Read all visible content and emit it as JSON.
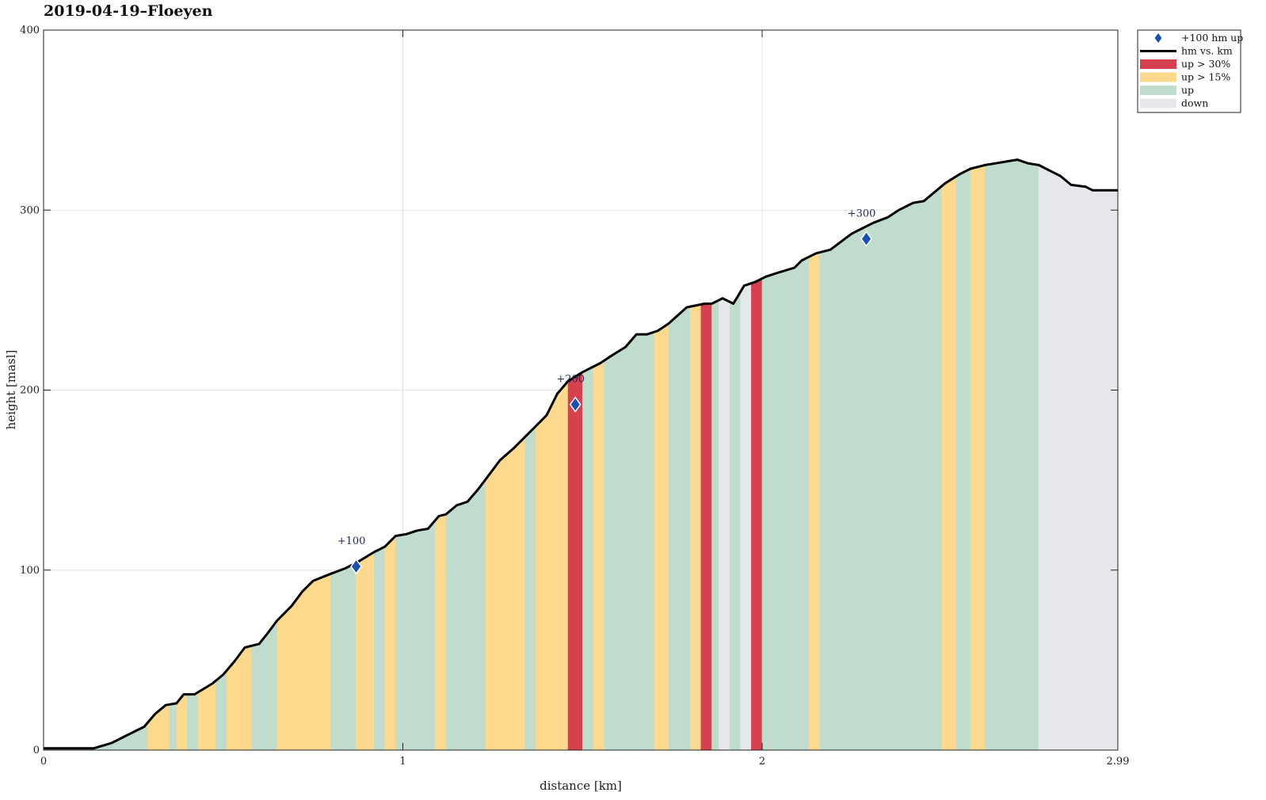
{
  "chart_data": {
    "type": "area",
    "title": "2019-04-19–Floeyen",
    "xlabel": "distance [km]",
    "ylabel": "height [masl]",
    "xlim": [
      0,
      2.99
    ],
    "ylim": [
      0,
      400
    ],
    "x_ticks": [
      {
        "value": 0,
        "label": "0"
      },
      {
        "value": 1,
        "label": "1"
      },
      {
        "value": 2,
        "label": "2"
      },
      {
        "value": 2.99,
        "label": "2.99"
      }
    ],
    "y_ticks": [
      {
        "value": 0,
        "label": "0"
      },
      {
        "value": 100,
        "label": "100"
      },
      {
        "value": 200,
        "label": "200"
      },
      {
        "value": 300,
        "label": "300"
      },
      {
        "value": 400,
        "label": "400"
      }
    ],
    "grid": true,
    "legend_position": "outside-top-right",
    "legend": [
      {
        "key": "marker",
        "label": "+100 hm up"
      },
      {
        "key": "line",
        "label": "hm vs. km"
      },
      {
        "key": "steep",
        "label": "up > 30%"
      },
      {
        "key": "medium",
        "label": "up > 15%"
      },
      {
        "key": "up",
        "label": "up"
      },
      {
        "key": "down",
        "label": "down"
      }
    ],
    "colors": {
      "steep": "#d7404f",
      "medium": "#fcd98c",
      "up": "#c0dccc",
      "down": "#e6e7eb",
      "line": "#000000",
      "marker": "#1750b0",
      "marker_label": "#1a2a5a",
      "grid": "#e3e3e3"
    },
    "profile": {
      "x": [
        0,
        0.03,
        0.06,
        0.09,
        0.14,
        0.19,
        0.24,
        0.28,
        0.31,
        0.34,
        0.37,
        0.39,
        0.42,
        0.42,
        0.47,
        0.5,
        0.53,
        0.56,
        0.6,
        0.62,
        0.65,
        0.69,
        0.72,
        0.75,
        0.8,
        0.84,
        0.87,
        0.92,
        0.95,
        0.98,
        1.01,
        1.04,
        1.07,
        1.1,
        1.12,
        1.15,
        1.18,
        1.21,
        1.24,
        1.27,
        1.31,
        1.34,
        1.37,
        1.4,
        1.43,
        1.46,
        1.5,
        1.55,
        1.58,
        1.62,
        1.65,
        1.68,
        1.71,
        1.74,
        1.79,
        1.84,
        1.86,
        1.89,
        1.92,
        1.95,
        1.98,
        2.01,
        2.04,
        2.09,
        2.11,
        2.15,
        2.19,
        2.23,
        2.25,
        2.28,
        2.31,
        2.35,
        2.38,
        2.42,
        2.45,
        2.48,
        2.51,
        2.55,
        2.58,
        2.62,
        2.65,
        2.68,
        2.71,
        2.74,
        2.77,
        2.8,
        2.83,
        2.86,
        2.9,
        2.92,
        2.95,
        2.99
      ],
      "y": [
        1,
        1,
        1,
        1,
        1,
        4,
        9,
        13,
        20,
        25,
        26,
        31,
        31,
        31,
        37,
        42,
        49,
        57,
        59,
        64,
        72,
        80,
        88,
        94,
        98,
        101,
        104,
        110,
        113,
        119,
        120,
        122,
        123,
        130,
        131,
        136,
        138,
        145,
        153,
        161,
        168,
        174,
        180,
        186,
        198,
        205,
        210,
        215,
        219,
        224,
        231,
        231,
        233,
        237,
        246,
        248,
        248,
        251,
        248,
        258,
        260,
        263,
        265,
        268,
        272,
        276,
        278,
        284,
        287,
        290,
        293,
        296,
        300,
        304,
        305,
        310,
        315,
        320,
        323,
        325,
        326,
        327,
        328,
        326,
        325,
        322,
        319,
        314,
        313,
        311,
        311,
        311
      ]
    },
    "segments": [
      {
        "x0": 0,
        "x1": 0.29,
        "kind": "up"
      },
      {
        "x0": 0.29,
        "x1": 0.35,
        "kind": "medium"
      },
      {
        "x0": 0.35,
        "x1": 0.37,
        "kind": "up"
      },
      {
        "x0": 0.37,
        "x1": 0.4,
        "kind": "medium"
      },
      {
        "x0": 0.4,
        "x1": 0.43,
        "kind": "up"
      },
      {
        "x0": 0.43,
        "x1": 0.48,
        "kind": "medium"
      },
      {
        "x0": 0.48,
        "x1": 0.51,
        "kind": "up"
      },
      {
        "x0": 0.51,
        "x1": 0.58,
        "kind": "medium"
      },
      {
        "x0": 0.58,
        "x1": 0.65,
        "kind": "up"
      },
      {
        "x0": 0.65,
        "x1": 0.8,
        "kind": "medium"
      },
      {
        "x0": 0.8,
        "x1": 0.87,
        "kind": "up"
      },
      {
        "x0": 0.87,
        "x1": 0.92,
        "kind": "medium"
      },
      {
        "x0": 0.92,
        "x1": 0.95,
        "kind": "up"
      },
      {
        "x0": 0.95,
        "x1": 0.98,
        "kind": "medium"
      },
      {
        "x0": 0.98,
        "x1": 1.09,
        "kind": "up"
      },
      {
        "x0": 1.09,
        "x1": 1.12,
        "kind": "medium"
      },
      {
        "x0": 1.12,
        "x1": 1.23,
        "kind": "up"
      },
      {
        "x0": 1.23,
        "x1": 1.34,
        "kind": "medium"
      },
      {
        "x0": 1.34,
        "x1": 1.37,
        "kind": "up"
      },
      {
        "x0": 1.37,
        "x1": 1.46,
        "kind": "medium"
      },
      {
        "x0": 1.46,
        "x1": 1.5,
        "kind": "steep"
      },
      {
        "x0": 1.5,
        "x1": 1.53,
        "kind": "up"
      },
      {
        "x0": 1.53,
        "x1": 1.56,
        "kind": "medium"
      },
      {
        "x0": 1.56,
        "x1": 1.7,
        "kind": "up"
      },
      {
        "x0": 1.7,
        "x1": 1.74,
        "kind": "medium"
      },
      {
        "x0": 1.74,
        "x1": 1.8,
        "kind": "up"
      },
      {
        "x0": 1.8,
        "x1": 1.83,
        "kind": "medium"
      },
      {
        "x0": 1.83,
        "x1": 1.86,
        "kind": "steep"
      },
      {
        "x0": 1.86,
        "x1": 1.88,
        "kind": "up"
      },
      {
        "x0": 1.88,
        "x1": 1.91,
        "kind": "down"
      },
      {
        "x0": 1.91,
        "x1": 1.94,
        "kind": "up"
      },
      {
        "x0": 1.94,
        "x1": 1.97,
        "kind": "down"
      },
      {
        "x0": 1.97,
        "x1": 2.0,
        "kind": "steep"
      },
      {
        "x0": 2.0,
        "x1": 2.13,
        "kind": "up"
      },
      {
        "x0": 2.13,
        "x1": 2.16,
        "kind": "medium"
      },
      {
        "x0": 2.16,
        "x1": 2.5,
        "kind": "up"
      },
      {
        "x0": 2.5,
        "x1": 2.54,
        "kind": "medium"
      },
      {
        "x0": 2.54,
        "x1": 2.58,
        "kind": "up"
      },
      {
        "x0": 2.58,
        "x1": 2.62,
        "kind": "medium"
      },
      {
        "x0": 2.62,
        "x1": 2.77,
        "kind": "up"
      },
      {
        "x0": 2.77,
        "x1": 2.99,
        "kind": "down"
      }
    ],
    "markers": [
      {
        "x": 0.87,
        "y": 102,
        "label": "+100"
      },
      {
        "x": 1.48,
        "y": 192,
        "label": "+200"
      },
      {
        "x": 2.29,
        "y": 284,
        "label": "+300"
      }
    ]
  }
}
